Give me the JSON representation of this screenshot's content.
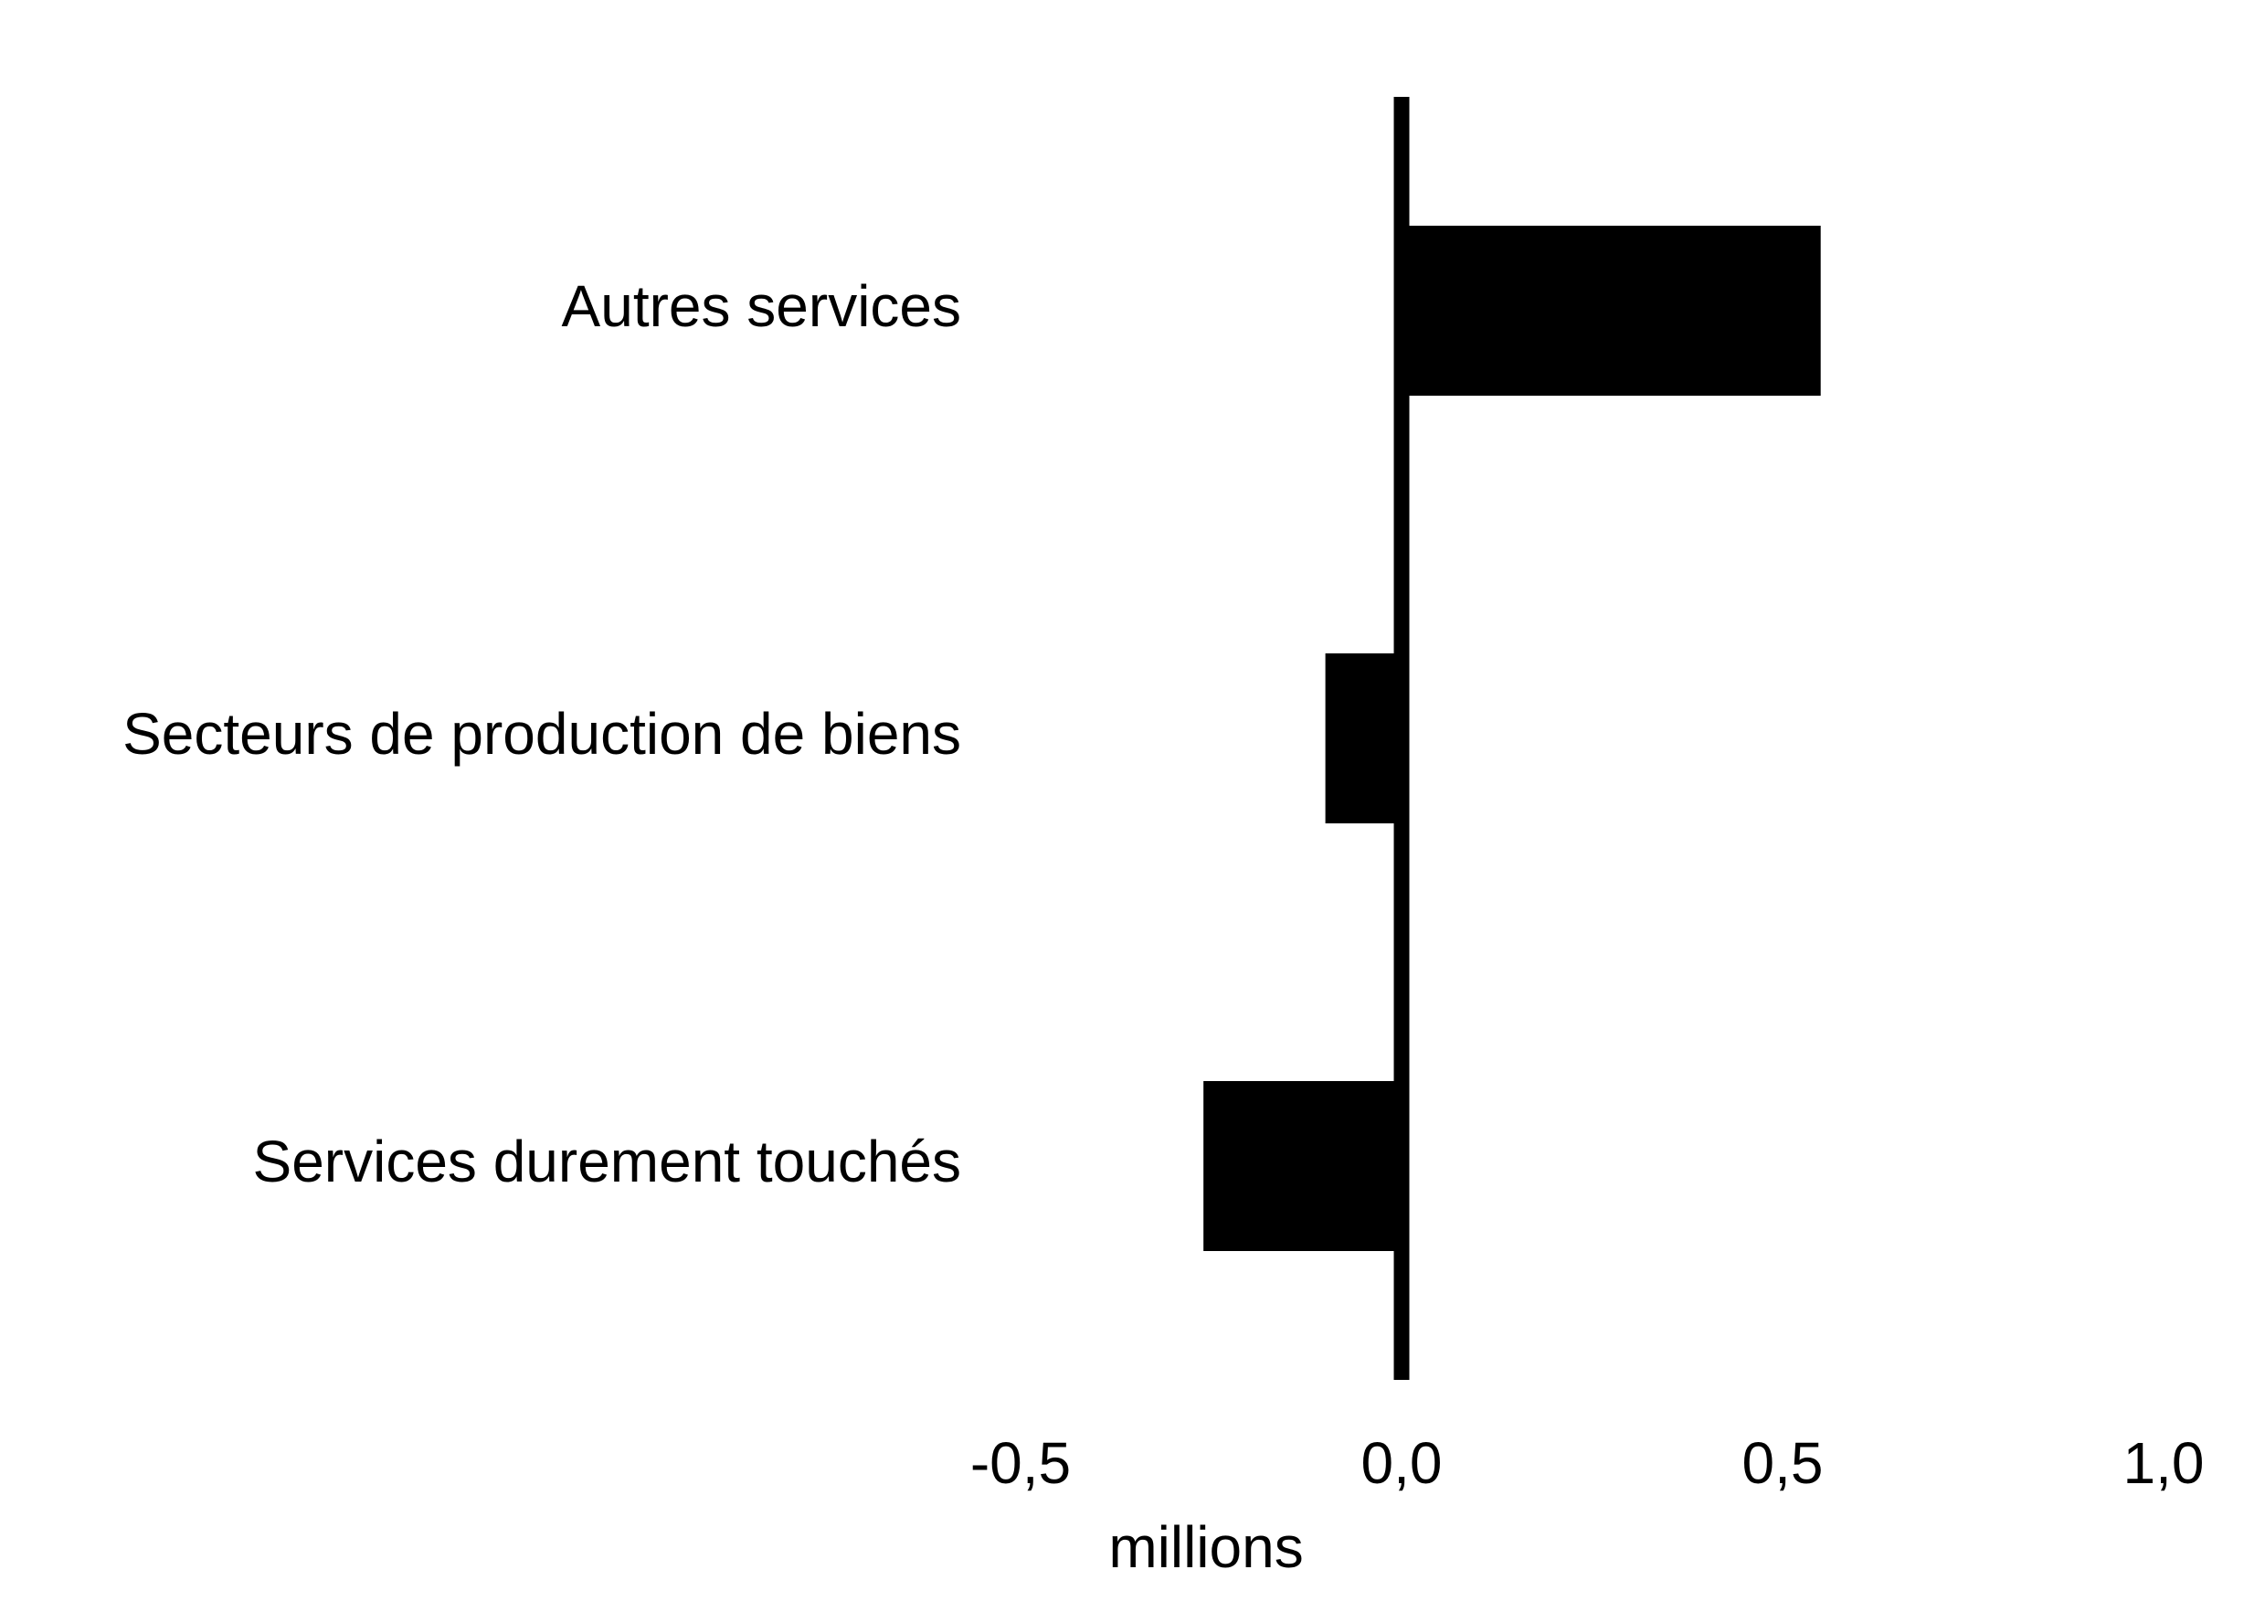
{
  "chart_data": {
    "type": "bar",
    "orientation": "horizontal",
    "categories": [
      "Autres services",
      "Secteurs de production de biens",
      "Services durement touchés"
    ],
    "values": [
      0.55,
      -0.1,
      -0.26
    ],
    "color": "#000000",
    "xlabel": "millions",
    "xlim": [
      -0.5,
      1.0
    ],
    "xticks": [
      {
        "value": -0.5,
        "label": "-0,5"
      },
      {
        "value": 0,
        "label": "0,0"
      },
      {
        "value": 0.5,
        "label": "0,5"
      },
      {
        "value": 1.0,
        "label": "1,0"
      }
    ],
    "grid": false
  }
}
